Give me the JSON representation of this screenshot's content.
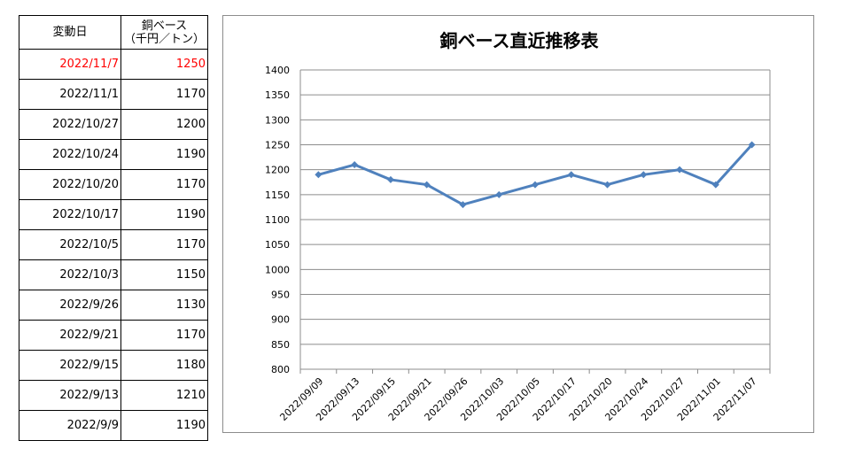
{
  "table": {
    "header_date": "変動日",
    "header_price_line1": "銅ベース",
    "header_price_line2": "（千円／トン）",
    "rows": [
      {
        "date": "2022/11/7",
        "price": "1250",
        "highlight": true
      },
      {
        "date": "2022/11/1",
        "price": "1170",
        "highlight": false
      },
      {
        "date": "2022/10/27",
        "price": "1200",
        "highlight": false
      },
      {
        "date": "2022/10/24",
        "price": "1190",
        "highlight": false
      },
      {
        "date": "2022/10/20",
        "price": "1170",
        "highlight": false
      },
      {
        "date": "2022/10/17",
        "price": "1190",
        "highlight": false
      },
      {
        "date": "2022/10/5",
        "price": "1170",
        "highlight": false
      },
      {
        "date": "2022/10/3",
        "price": "1150",
        "highlight": false
      },
      {
        "date": "2022/9/26",
        "price": "1130",
        "highlight": false
      },
      {
        "date": "2022/9/21",
        "price": "1170",
        "highlight": false
      },
      {
        "date": "2022/9/15",
        "price": "1180",
        "highlight": false
      },
      {
        "date": "2022/9/13",
        "price": "1210",
        "highlight": false
      },
      {
        "date": "2022/9/9",
        "price": "1190",
        "highlight": false
      }
    ]
  },
  "colors": {
    "highlight": "#ff0000",
    "series": "#4f81bd",
    "grid": "#8c8c8c"
  },
  "chart_data": {
    "type": "line",
    "title": "銅ベース直近推移表",
    "xlabel": "",
    "ylabel": "",
    "x": [
      "2022/09/09",
      "2022/09/13",
      "2022/09/15",
      "2022/09/21",
      "2022/09/26",
      "2022/10/03",
      "2022/10/05",
      "2022/10/17",
      "2022/10/20",
      "2022/10/24",
      "2022/10/27",
      "2022/11/01",
      "2022/11/07"
    ],
    "series": [
      {
        "values": [
          1190,
          1210,
          1180,
          1170,
          1130,
          1150,
          1170,
          1190,
          1170,
          1190,
          1200,
          1170,
          1250
        ]
      }
    ],
    "ylim": [
      800,
      1400
    ],
    "ytick_step": 50,
    "yticks": [
      "800",
      "850",
      "900",
      "950",
      "1000",
      "1050",
      "1100",
      "1150",
      "1200",
      "1250",
      "1300",
      "1350",
      "1400"
    ],
    "grid": true,
    "legend": "none",
    "marker": "diamond"
  }
}
